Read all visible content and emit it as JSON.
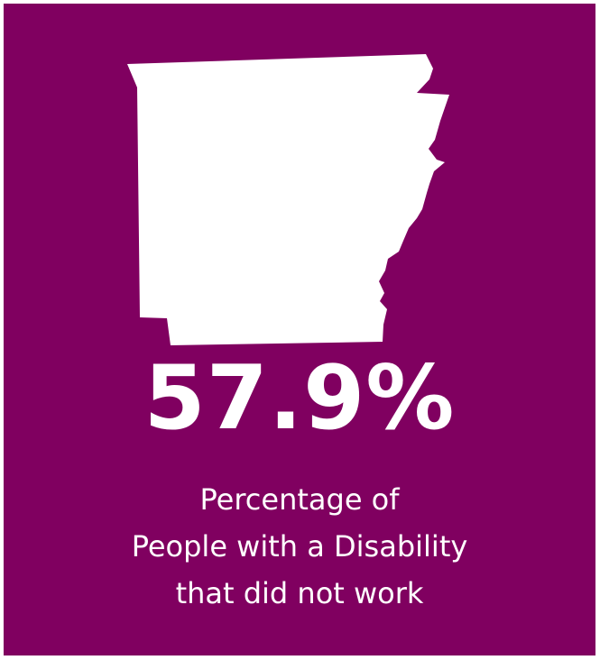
{
  "colors": {
    "background": "#800060",
    "foreground": "#ffffff"
  },
  "graphic": {
    "icon": "arkansas-state-icon"
  },
  "stat": {
    "value": "57.9%",
    "caption_lines": [
      "Percentage of",
      "People with a Disability",
      "that did not work"
    ]
  }
}
